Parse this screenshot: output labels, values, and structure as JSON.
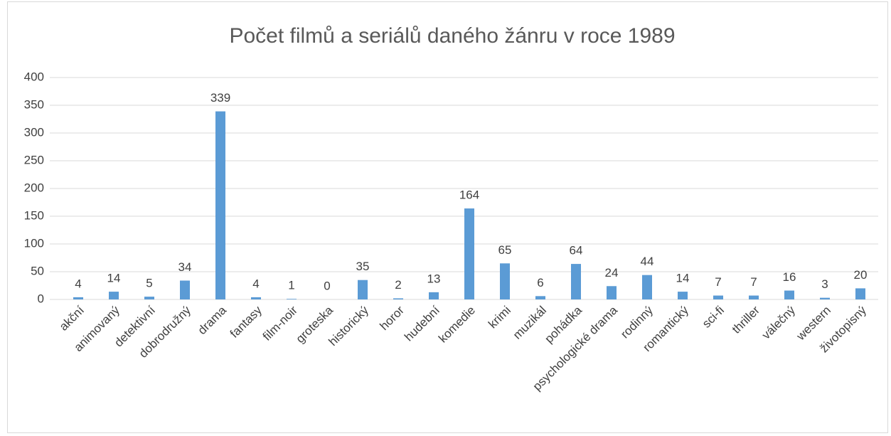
{
  "chart_data": {
    "type": "bar",
    "title": "Počet filmů a seriálů daného žánru v roce 1989",
    "categories": [
      "akční",
      "animovaný",
      "detektivní",
      "dobrodružný",
      "drama",
      "fantasy",
      "film-noir",
      "groteska",
      "historický",
      "horor",
      "hudební",
      "komedie",
      "krimi",
      "muzikál",
      "pohádka",
      "psychologické drama",
      "rodinný",
      "romantický",
      "sci-fi",
      "thriller",
      "válečný",
      "western",
      "životopisný"
    ],
    "values": [
      4,
      14,
      5,
      34,
      339,
      4,
      1,
      0,
      35,
      2,
      13,
      164,
      65,
      6,
      64,
      24,
      44,
      14,
      7,
      7,
      16,
      3,
      20
    ],
    "color": "#5b9bd5",
    "ylim": [
      0,
      400
    ],
    "yticks": [
      0,
      50,
      100,
      150,
      200,
      250,
      300,
      350,
      400
    ],
    "grid": true
  }
}
